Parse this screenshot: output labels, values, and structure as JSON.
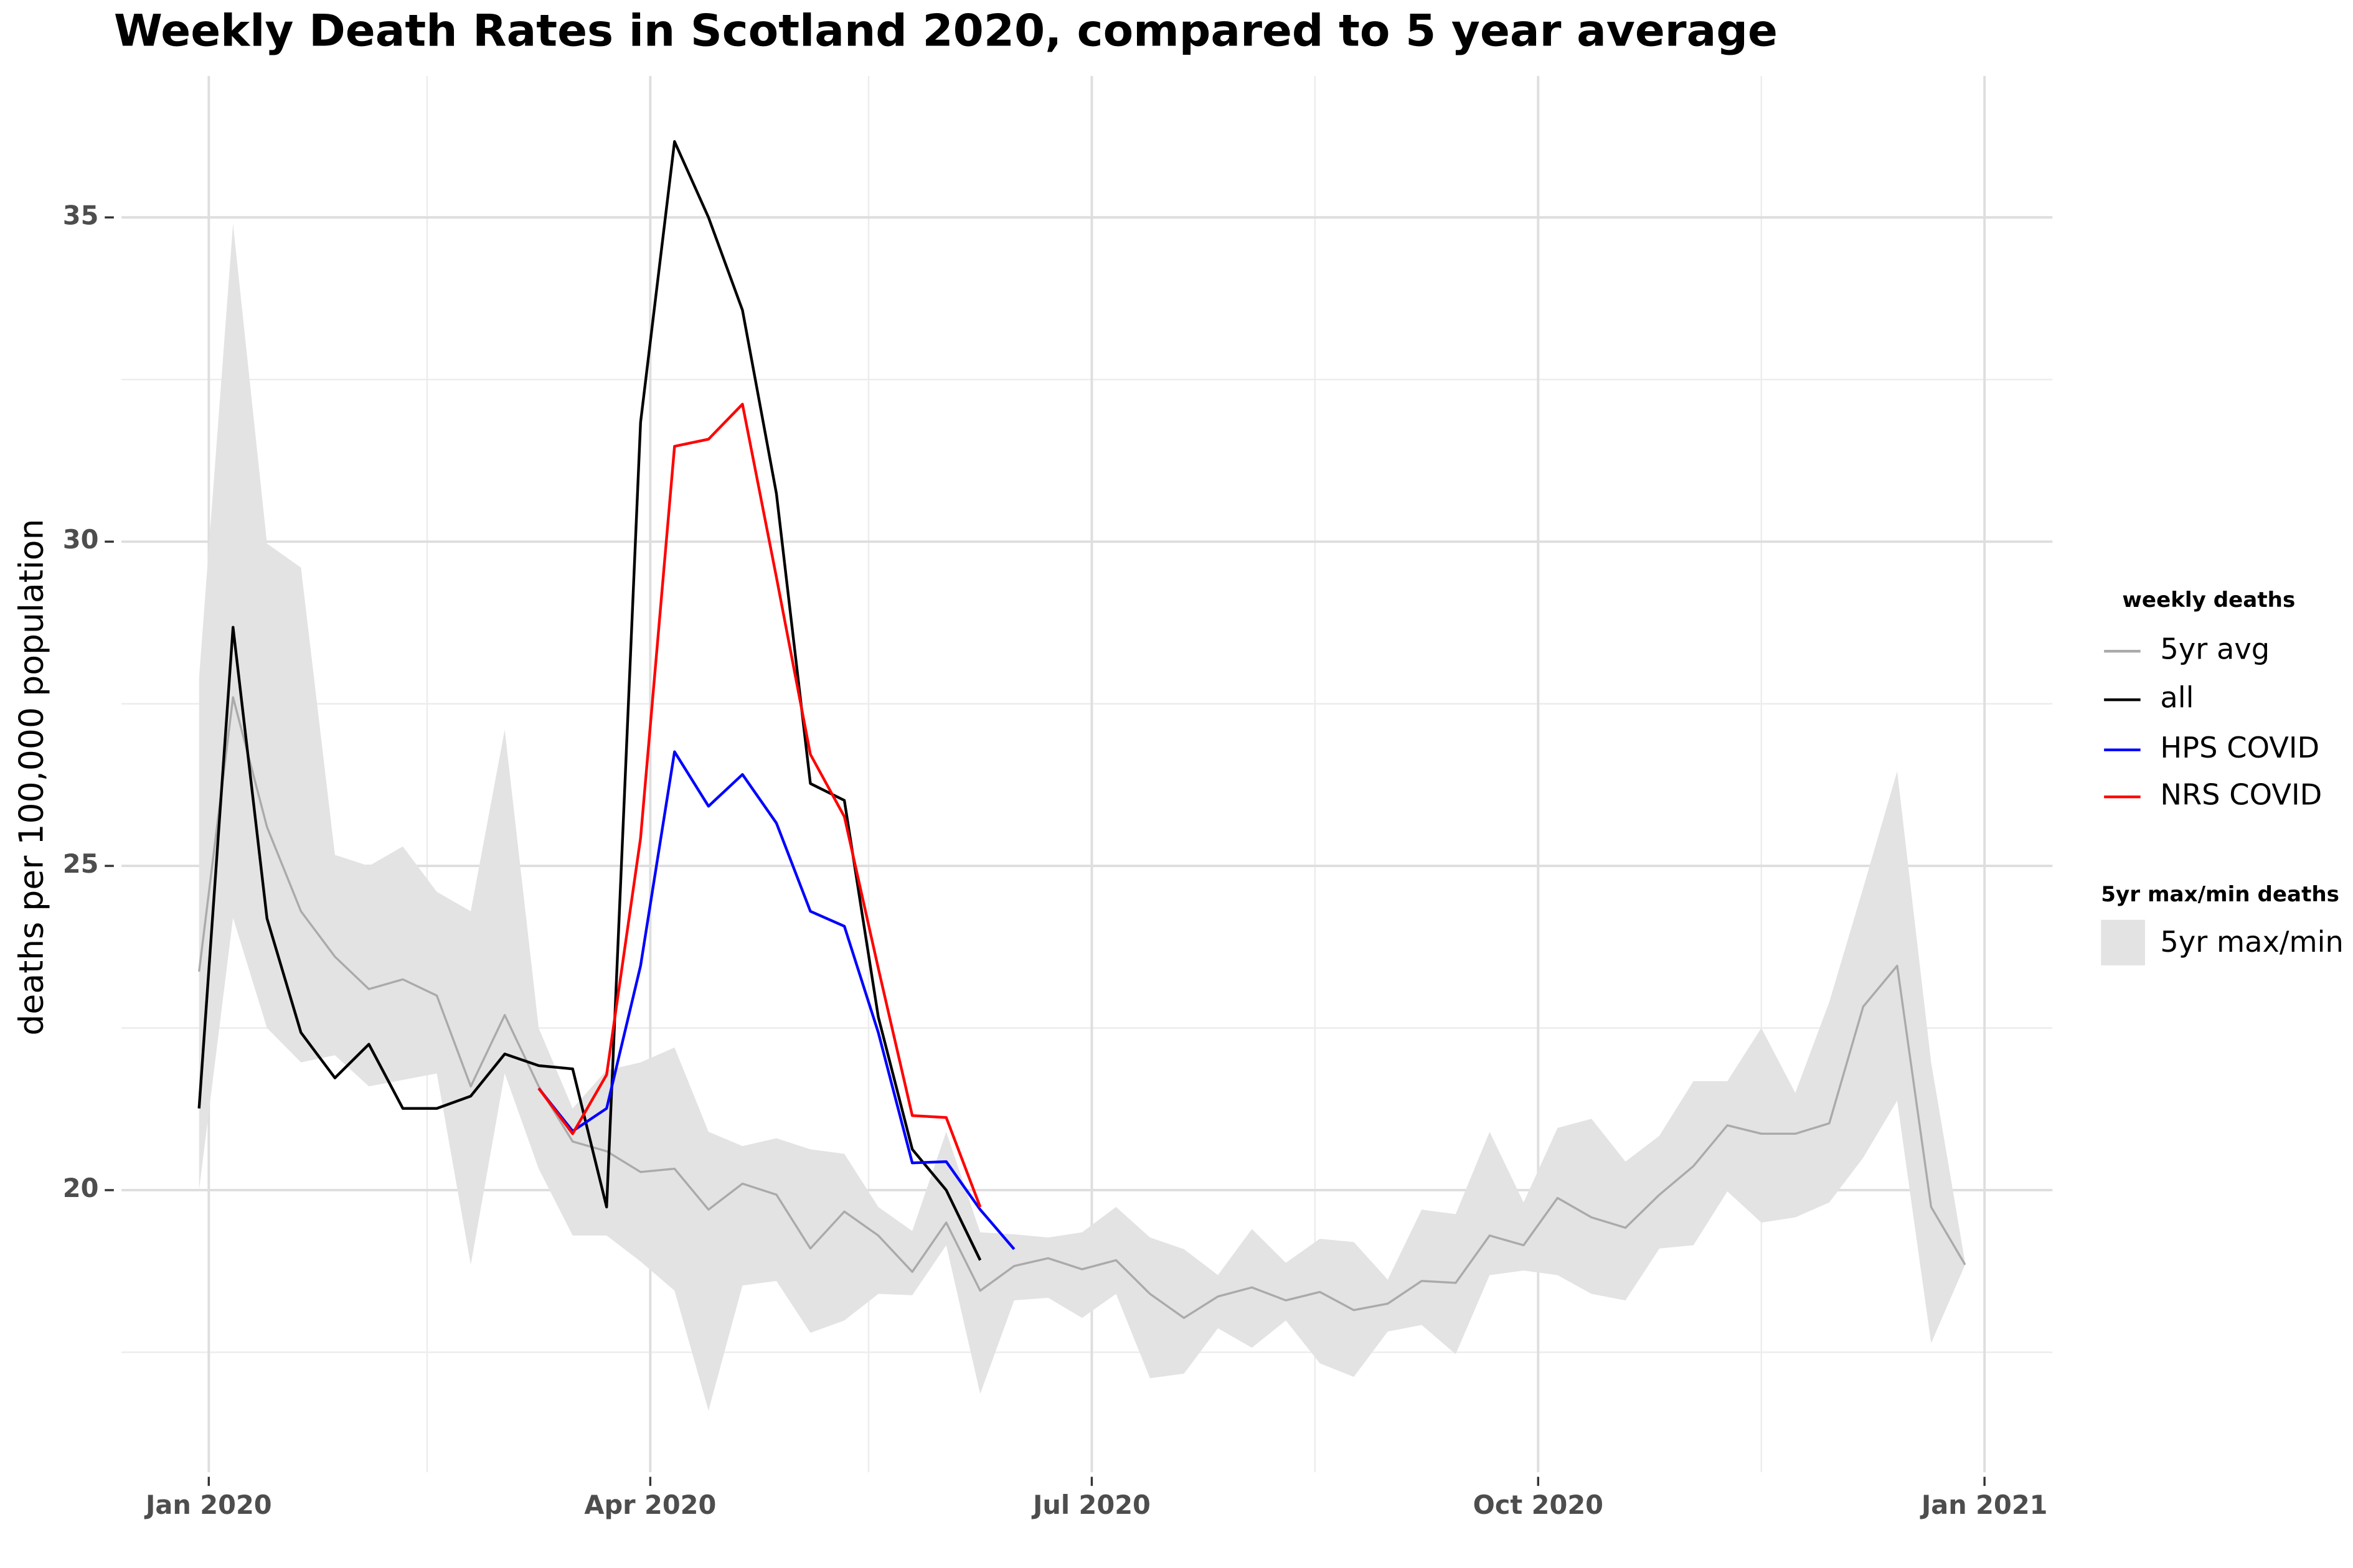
{
  "chart_data": {
    "type": "line",
    "title": "Weekly Death Rates in Scotland 2020, compared to 5 year average",
    "y_label": "deaths per 100,000 population",
    "x": [
      "2019-12-30",
      "2020-01-06",
      "2020-01-13",
      "2020-01-20",
      "2020-01-27",
      "2020-02-03",
      "2020-02-10",
      "2020-02-17",
      "2020-02-24",
      "2020-03-02",
      "2020-03-09",
      "2020-03-16",
      "2020-03-23",
      "2020-03-30",
      "2020-04-06",
      "2020-04-13",
      "2020-04-20",
      "2020-04-27",
      "2020-05-04",
      "2020-05-11",
      "2020-05-18",
      "2020-05-25",
      "2020-06-01",
      "2020-06-08",
      "2020-06-15",
      "2020-06-22",
      "2020-06-29",
      "2020-07-06",
      "2020-07-13",
      "2020-07-20",
      "2020-07-27",
      "2020-08-03",
      "2020-08-10",
      "2020-08-17",
      "2020-08-24",
      "2020-08-31",
      "2020-09-07",
      "2020-09-14",
      "2020-09-21",
      "2020-09-28",
      "2020-10-05",
      "2020-10-12",
      "2020-10-19",
      "2020-10-26",
      "2020-11-02",
      "2020-11-09",
      "2020-11-16",
      "2020-11-23",
      "2020-11-30",
      "2020-12-07",
      "2020-12-14",
      "2020-12-21",
      "2020-12-28"
    ],
    "xlim": [
      "2019-12-14",
      "2021-01-15"
    ],
    "xticks": [
      {
        "value": "2020-01-01",
        "label": "Jan 2020"
      },
      {
        "value": "2020-04-01",
        "label": "Apr 2020"
      },
      {
        "value": "2020-07-01",
        "label": "Jul 2020"
      },
      {
        "value": "2020-10-01",
        "label": "Oct 2020"
      },
      {
        "value": "2021-01-01",
        "label": "Jan 2021"
      }
    ],
    "x_minor_grid": [
      "2020-02-15",
      "2020-05-16",
      "2020-08-16",
      "2020-11-16"
    ],
    "ylim": [
      15.65,
      37.18
    ],
    "yticks": [
      20,
      25,
      30,
      35
    ],
    "y_minor_grid": [
      17.5,
      22.5,
      27.5,
      32.5
    ],
    "grid": true,
    "legend_title": "weekly deaths",
    "band": {
      "legend_title": "5yr max/min deaths",
      "name": "5yr max/min",
      "color": "#e3e3e3",
      "upper": [
        27.9,
        34.9,
        29.97,
        29.6,
        25.17,
        25.0,
        25.3,
        24.6,
        24.3,
        27.1,
        22.5,
        21.26,
        21.85,
        21.97,
        22.2,
        20.9,
        20.68,
        20.8,
        20.63,
        20.56,
        19.74,
        19.37,
        20.9,
        19.35,
        19.32,
        19.27,
        19.35,
        19.74,
        19.27,
        19.09,
        18.69,
        19.4,
        18.88,
        19.25,
        19.2,
        18.62,
        19.7,
        19.63,
        20.9,
        19.81,
        20.96,
        21.1,
        20.44,
        20.84,
        21.68,
        21.68,
        22.5,
        21.5,
        22.9,
        24.66,
        26.46,
        21.97,
        18.88
      ],
      "lower": [
        20.0,
        24.2,
        22.5,
        21.97,
        22.08,
        21.6,
        21.7,
        21.8,
        18.85,
        21.8,
        20.33,
        19.3,
        19.3,
        18.9,
        18.45,
        16.6,
        18.53,
        18.6,
        17.8,
        17.99,
        18.4,
        18.38,
        19.15,
        16.86,
        18.3,
        18.34,
        18.03,
        18.4,
        17.1,
        17.17,
        17.87,
        17.57,
        17.99,
        17.33,
        17.12,
        17.82,
        17.92,
        17.47,
        18.69,
        18.76,
        18.69,
        18.4,
        18.3,
        19.1,
        19.15,
        19.98,
        19.5,
        19.58,
        19.81,
        20.5,
        21.38,
        17.64,
        18.85
      ]
    },
    "series": [
      {
        "name": "5yr avg",
        "color": "#aaaaaa",
        "values": [
          23.37,
          27.6,
          25.6,
          24.3,
          23.6,
          23.1,
          23.25,
          23.0,
          21.6,
          22.7,
          21.6,
          20.75,
          20.6,
          20.28,
          20.33,
          19.7,
          20.1,
          19.93,
          19.1,
          19.67,
          19.3,
          18.74,
          19.5,
          18.45,
          18.83,
          18.95,
          18.78,
          18.92,
          18.4,
          18.03,
          18.36,
          18.5,
          18.3,
          18.43,
          18.15,
          18.25,
          18.6,
          18.57,
          19.3,
          19.15,
          19.88,
          19.58,
          19.42,
          19.93,
          20.37,
          21.0,
          20.87,
          20.87,
          21.03,
          22.83,
          23.46,
          19.74,
          18.85
        ]
      },
      {
        "name": "all",
        "color": "#000000",
        "values": [
          21.26,
          28.68,
          24.19,
          22.43,
          21.73,
          22.25,
          21.26,
          21.26,
          21.45,
          22.1,
          21.92,
          21.87,
          19.74,
          31.84,
          36.17,
          35.0,
          33.57,
          30.74,
          26.27,
          26.01,
          22.67,
          20.63,
          20.0,
          18.92,
          null,
          null,
          null,
          null,
          null,
          null,
          null,
          null,
          null,
          null,
          null,
          null,
          null,
          null,
          null,
          null,
          null,
          null,
          null,
          null,
          null,
          null,
          null,
          null,
          null,
          null,
          null,
          null,
          null
        ]
      },
      {
        "name": "HPS COVID",
        "color": "#0000ff",
        "values": [
          null,
          null,
          null,
          null,
          null,
          null,
          null,
          null,
          null,
          null,
          21.57,
          20.91,
          21.26,
          23.46,
          26.76,
          25.92,
          26.41,
          25.66,
          24.3,
          24.07,
          22.43,
          20.42,
          20.44,
          19.7,
          19.09,
          null,
          null,
          null,
          null,
          null,
          null,
          null,
          null,
          null,
          null,
          null,
          null,
          null,
          null,
          null,
          null,
          null,
          null,
          null,
          null,
          null,
          null,
          null,
          null,
          null,
          null,
          null,
          null
        ]
      },
      {
        "name": "NRS COVID",
        "color": "#ff0000",
        "values": [
          null,
          null,
          null,
          null,
          null,
          null,
          null,
          null,
          null,
          null,
          21.57,
          20.87,
          21.78,
          25.43,
          31.47,
          31.58,
          32.12,
          29.45,
          26.72,
          25.76,
          23.42,
          21.15,
          21.12,
          19.74,
          null,
          null,
          null,
          null,
          null,
          null,
          null,
          null,
          null,
          null,
          null,
          null,
          null,
          null,
          null,
          null,
          null,
          null,
          null,
          null,
          null,
          null,
          null,
          null,
          null,
          null,
          null,
          null,
          null
        ]
      }
    ]
  }
}
